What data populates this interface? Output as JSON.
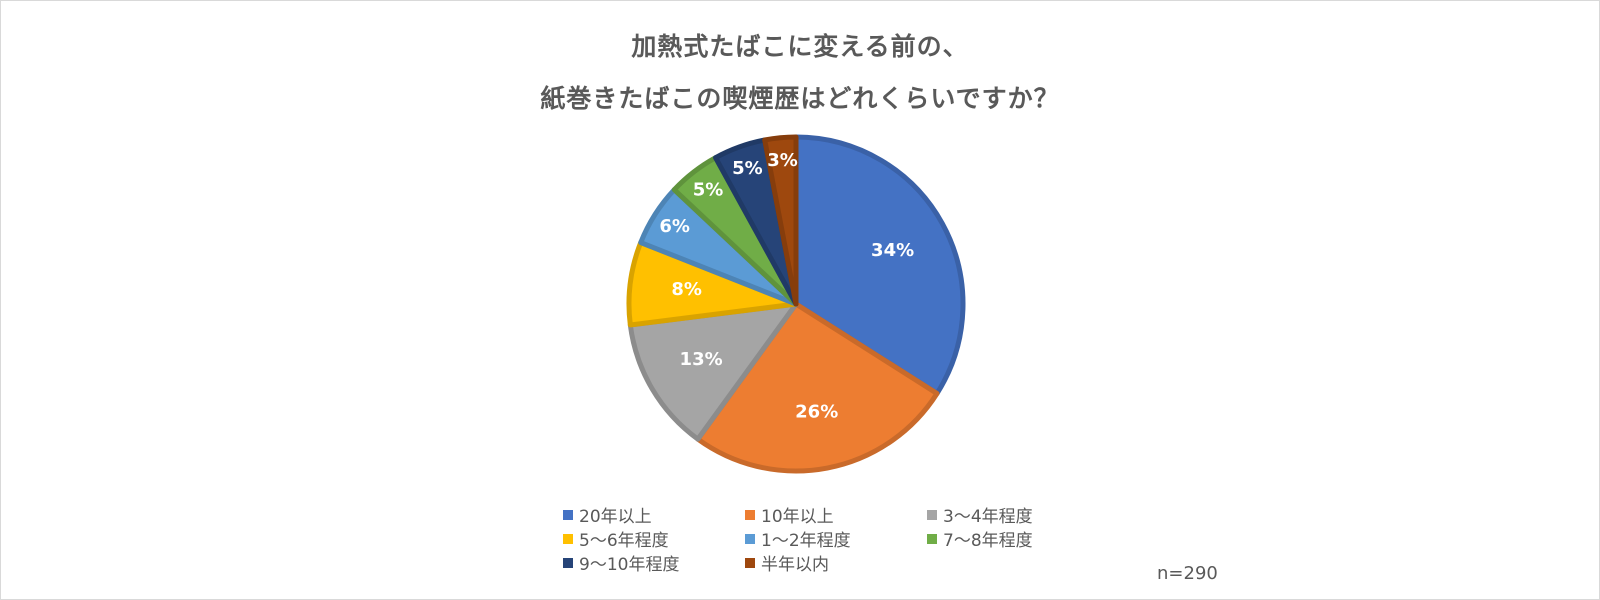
{
  "title": {
    "line1": "加熱式たばこに変える前の、",
    "line2": "紙巻きたばこの喫煙歴はどれくらいですか？"
  },
  "note": "n=290",
  "chart_data": {
    "type": "pie",
    "title": "加熱式たばこに変える前の、紙巻きたばこの喫煙歴はどれくらいですか？",
    "categories": [
      "20年以上",
      "10年以上",
      "3～4年程度",
      "5～6年程度",
      "1～2年程度",
      "7～8年程度",
      "9～10年程度",
      "半年以内"
    ],
    "values": [
      34,
      26,
      13,
      8,
      6,
      5,
      5,
      3
    ],
    "data_labels": [
      "34%",
      "26%",
      "13%",
      "8%",
      "6%",
      "5%",
      "5%",
      "3%"
    ],
    "colors": [
      "#4472C4",
      "#ED7D31",
      "#A5A5A5",
      "#FFC000",
      "#5B9BD5",
      "#70AD47",
      "#264478",
      "#9E480E"
    ],
    "pie_order": [
      0,
      1,
      2,
      3,
      4,
      5,
      6,
      7
    ],
    "legend_position": "bottom",
    "note": "n=290"
  }
}
